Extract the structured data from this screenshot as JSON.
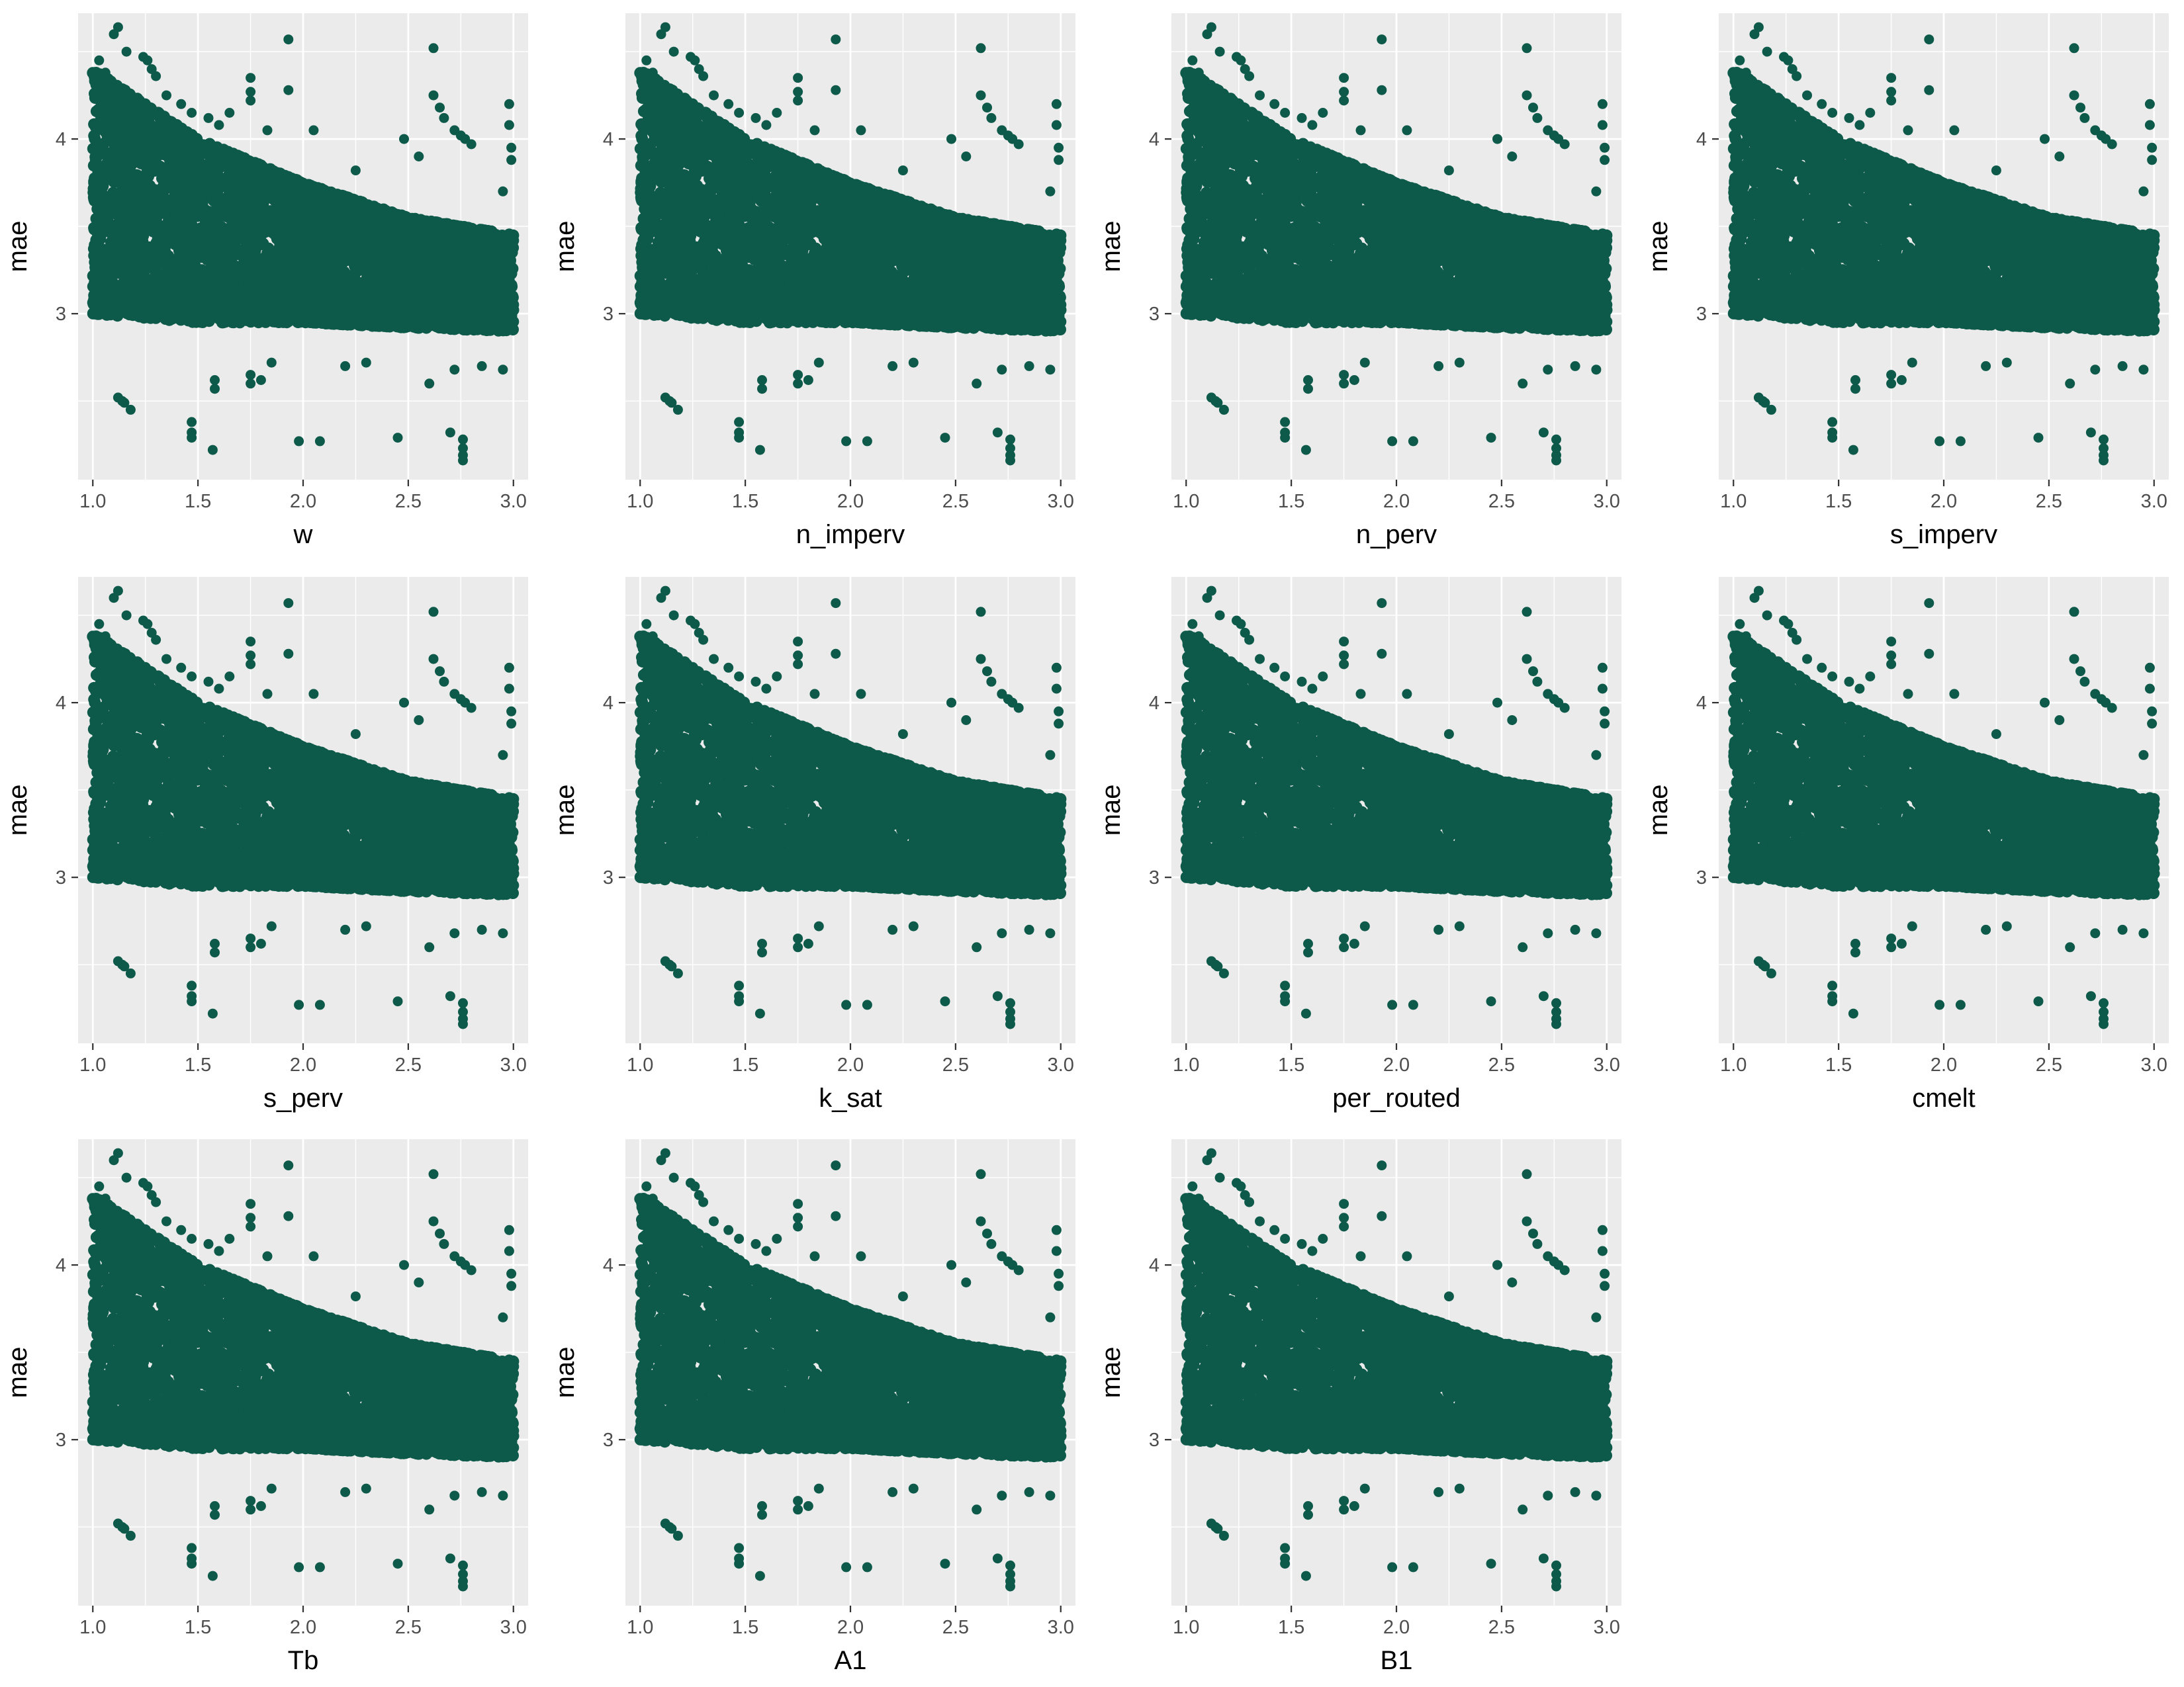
{
  "chart_data": {
    "type": "scatter",
    "point_color": "#0E5A4A",
    "panel_background": "#EBEBEB",
    "grid": true,
    "ylabel": "mae",
    "xlim": [
      0.93,
      3.07
    ],
    "ylim": [
      2.05,
      4.72
    ],
    "x_ticks": [
      1.0,
      1.5,
      2.0,
      2.5,
      3.0
    ],
    "x_tick_labels": [
      "1.0",
      "1.5",
      "2.0",
      "2.5",
      "3.0"
    ],
    "y_ticks": [
      3,
      4
    ],
    "y_tick_labels": [
      "3",
      "4"
    ],
    "panels": [
      {
        "xlabel": "w"
      },
      {
        "xlabel": "n_imperv"
      },
      {
        "xlabel": "n_perv"
      },
      {
        "xlabel": "s_imperv"
      },
      {
        "xlabel": "s_perv"
      },
      {
        "xlabel": "k_sat"
      },
      {
        "xlabel": "per_routed"
      },
      {
        "xlabel": "cmelt"
      },
      {
        "xlabel": "Tb"
      },
      {
        "xlabel": "A1"
      },
      {
        "xlabel": "B1"
      }
    ],
    "cloud": {
      "upper_envelope": [
        [
          1.0,
          4.4
        ],
        [
          1.5,
          4.0
        ],
        [
          2.0,
          3.75
        ],
        [
          2.5,
          3.55
        ],
        [
          3.0,
          3.45
        ]
      ],
      "lower_envelope": [
        [
          1.0,
          3.0
        ],
        [
          1.5,
          2.95
        ],
        [
          2.0,
          2.95
        ],
        [
          2.5,
          2.92
        ],
        [
          3.0,
          2.9
        ]
      ]
    },
    "outliers": [
      [
        1.03,
        4.45
      ],
      [
        1.06,
        4.38
      ],
      [
        1.08,
        4.3
      ],
      [
        1.1,
        4.6
      ],
      [
        1.12,
        4.64
      ],
      [
        1.16,
        4.5
      ],
      [
        1.24,
        4.47
      ],
      [
        1.26,
        4.45
      ],
      [
        1.28,
        4.4
      ],
      [
        1.3,
        4.36
      ],
      [
        1.35,
        4.25
      ],
      [
        1.42,
        4.2
      ],
      [
        1.47,
        4.15
      ],
      [
        1.55,
        4.12
      ],
      [
        1.6,
        4.08
      ],
      [
        1.65,
        4.15
      ],
      [
        1.75,
        4.35
      ],
      [
        1.75,
        4.27
      ],
      [
        1.75,
        4.22
      ],
      [
        1.93,
        4.28
      ],
      [
        1.93,
        4.57
      ],
      [
        1.83,
        4.05
      ],
      [
        2.05,
        4.05
      ],
      [
        2.25,
        3.82
      ],
      [
        2.48,
        4.0
      ],
      [
        2.55,
        3.9
      ],
      [
        2.62,
        4.52
      ],
      [
        2.62,
        4.25
      ],
      [
        2.65,
        4.18
      ],
      [
        2.67,
        4.12
      ],
      [
        2.72,
        4.05
      ],
      [
        2.75,
        4.02
      ],
      [
        2.77,
        4.0
      ],
      [
        2.8,
        3.97
      ],
      [
        2.98,
        4.2
      ],
      [
        2.98,
        4.08
      ],
      [
        2.99,
        3.95
      ],
      [
        2.99,
        3.88
      ],
      [
        2.95,
        3.7
      ],
      [
        1.12,
        2.52
      ],
      [
        1.14,
        2.5
      ],
      [
        1.15,
        2.49
      ],
      [
        1.18,
        2.45
      ],
      [
        1.47,
        2.38
      ],
      [
        1.47,
        2.32
      ],
      [
        1.47,
        2.29
      ],
      [
        1.57,
        2.22
      ],
      [
        1.98,
        2.27
      ],
      [
        2.08,
        2.27
      ],
      [
        2.45,
        2.29
      ],
      [
        2.7,
        2.32
      ],
      [
        2.76,
        2.28
      ],
      [
        2.76,
        2.23
      ],
      [
        2.76,
        2.19
      ],
      [
        2.76,
        2.16
      ],
      [
        1.58,
        2.57
      ],
      [
        1.58,
        2.62
      ],
      [
        1.75,
        2.6
      ],
      [
        1.75,
        2.65
      ],
      [
        1.8,
        2.62
      ],
      [
        2.6,
        2.6
      ],
      [
        2.72,
        2.68
      ],
      [
        2.85,
        2.7
      ],
      [
        2.95,
        2.68
      ],
      [
        2.2,
        2.7
      ],
      [
        2.3,
        2.72
      ],
      [
        1.85,
        2.72
      ]
    ]
  }
}
